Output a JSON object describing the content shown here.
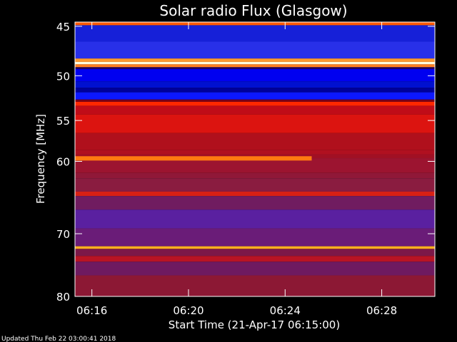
{
  "chart_data": {
    "type": "heatmap",
    "title": "Solar radio Flux (Glasgow)",
    "xlabel": "Start Time (21-Apr-17 06:15:00)",
    "ylabel": "Frequency [MHz]",
    "x_ticks": [
      "06:16",
      "06:20",
      "06:24",
      "06:28"
    ],
    "x_tick_minutes": [
      16,
      20,
      24,
      28
    ],
    "xlim_minutes": [
      15.3,
      30.2
    ],
    "y_ticks": [
      45,
      50,
      55,
      60,
      70,
      80
    ],
    "ylim": [
      44.6,
      80.0
    ],
    "y_scale": "log",
    "colormap": "blue-red-yellow",
    "bands": [
      {
        "f_from": 44.6,
        "f_to": 44.9,
        "color": "#ff5a00"
      },
      {
        "f_from": 44.9,
        "f_to": 46.5,
        "color": "#1620d8"
      },
      {
        "f_from": 46.5,
        "f_to": 48.2,
        "color": "#2830e8"
      },
      {
        "f_from": 48.2,
        "f_to": 48.55,
        "color": "#ff9a30"
      },
      {
        "f_from": 48.55,
        "f_to": 48.8,
        "color": "#ffffe0"
      },
      {
        "f_from": 48.8,
        "f_to": 49.1,
        "color": "#ff8020"
      },
      {
        "f_from": 49.1,
        "f_to": 49.3,
        "color": "#200060"
      },
      {
        "f_from": 49.3,
        "f_to": 50.6,
        "color": "#0000f0"
      },
      {
        "f_from": 50.6,
        "f_to": 51.3,
        "color": "#0010d0"
      },
      {
        "f_from": 51.3,
        "f_to": 51.8,
        "color": "#00009a"
      },
      {
        "f_from": 51.8,
        "f_to": 52.6,
        "color": "#0c18ff"
      },
      {
        "f_from": 52.6,
        "f_to": 52.85,
        "color": "#7a0018"
      },
      {
        "f_from": 52.85,
        "f_to": 53.3,
        "color": "#ff2800"
      },
      {
        "f_from": 53.3,
        "f_to": 54.3,
        "color": "#c00c18"
      },
      {
        "f_from": 54.3,
        "f_to": 56.5,
        "color": "#dc1410"
      },
      {
        "f_from": 56.5,
        "f_to": 58.6,
        "color": "#b0101c"
      },
      {
        "f_from": 58.6,
        "f_to": 59.1,
        "color": "#b01020"
      },
      {
        "f_from": 59.1,
        "f_to": 59.6,
        "color": "#a01024"
      },
      {
        "f_from": 59.6,
        "f_to": 61.5,
        "color": "#9c1430"
      },
      {
        "f_from": 61.5,
        "f_to": 62.2,
        "color": "#901838"
      },
      {
        "f_from": 62.2,
        "f_to": 64.0,
        "color": "#8a1c40"
      },
      {
        "f_from": 64.0,
        "f_to": 64.6,
        "color": "#d82014"
      },
      {
        "f_from": 64.6,
        "f_to": 66.5,
        "color": "#701c60"
      },
      {
        "f_from": 66.5,
        "f_to": 69.2,
        "color": "#5a20a0"
      },
      {
        "f_from": 69.2,
        "f_to": 71.9,
        "color": "#6a1c78"
      },
      {
        "f_from": 71.9,
        "f_to": 72.3,
        "color": "#ffb020"
      },
      {
        "f_from": 72.3,
        "f_to": 73.4,
        "color": "#7c1848"
      },
      {
        "f_from": 73.4,
        "f_to": 74.3,
        "color": "#b81424"
      },
      {
        "f_from": 74.3,
        "f_to": 76.5,
        "color": "#6e1a60"
      },
      {
        "f_from": 76.5,
        "f_to": 80.0,
        "color": "#8c1834"
      }
    ],
    "series": [
      {
        "f_from": 59.35,
        "f_to": 59.9,
        "t_start": 15.3,
        "t_end": 25.1,
        "color": "#ff7a10"
      }
    ],
    "colors": {
      "background": "#000000",
      "text": "#ffffff",
      "axis": "#ffffff"
    }
  },
  "footer": {
    "updated": "Updated Thu Feb 22 03:00:41 2018"
  }
}
